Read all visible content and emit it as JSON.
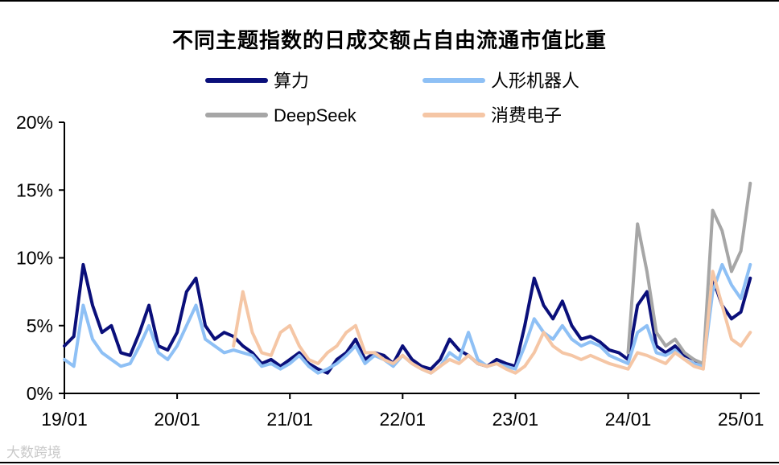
{
  "chart_data": {
    "type": "line",
    "title": "不同主题指数的日成交额占自由流通市值比重",
    "xlabel": "",
    "ylabel": "",
    "x_ticks": [
      "19/01",
      "20/01",
      "21/01",
      "22/01",
      "23/01",
      "24/01",
      "25/01"
    ],
    "y_ticks": [
      "0%",
      "5%",
      "10%",
      "15%",
      "20%"
    ],
    "xlim": [
      "2019-01",
      "2025-03"
    ],
    "ylim": [
      0,
      20
    ],
    "legend_position": "top",
    "series": [
      {
        "name": "算力",
        "color": "#0a0f7a",
        "x": [
          "2019-01",
          "2019-02",
          "2019-03",
          "2019-04",
          "2019-05",
          "2019-06",
          "2019-07",
          "2019-08",
          "2019-09",
          "2019-10",
          "2019-11",
          "2019-12",
          "2020-01",
          "2020-02",
          "2020-03",
          "2020-04",
          "2020-05",
          "2020-06",
          "2020-07",
          "2020-08",
          "2020-09",
          "2020-10",
          "2020-11",
          "2020-12",
          "2021-01",
          "2021-02",
          "2021-03",
          "2021-04",
          "2021-05",
          "2021-06",
          "2021-07",
          "2021-08",
          "2021-09",
          "2021-10",
          "2021-11",
          "2021-12",
          "2022-01",
          "2022-02",
          "2022-03",
          "2022-04",
          "2022-05",
          "2022-06",
          "2022-07",
          "2022-08",
          "2022-09",
          "2022-10",
          "2022-11",
          "2022-12",
          "2023-01",
          "2023-02",
          "2023-03",
          "2023-04",
          "2023-05",
          "2023-06",
          "2023-07",
          "2023-08",
          "2023-09",
          "2023-10",
          "2023-11",
          "2023-12",
          "2024-01",
          "2024-02",
          "2024-03",
          "2024-04",
          "2024-05",
          "2024-06",
          "2024-07",
          "2024-08",
          "2024-09",
          "2024-10",
          "2024-11",
          "2024-12",
          "2025-01",
          "2025-02"
        ],
        "values": [
          3.5,
          4.2,
          9.5,
          6.5,
          4.5,
          5.0,
          3.0,
          2.8,
          4.5,
          6.5,
          3.5,
          3.2,
          4.5,
          7.5,
          8.5,
          5.0,
          4.0,
          4.5,
          4.2,
          3.5,
          3.0,
          2.2,
          2.5,
          2.0,
          2.5,
          3.0,
          2.2,
          1.8,
          1.5,
          2.5,
          3.0,
          4.0,
          2.5,
          3.0,
          2.8,
          2.2,
          3.5,
          2.5,
          2.0,
          1.8,
          2.5,
          4.0,
          3.2,
          2.8,
          2.2,
          2.0,
          2.5,
          2.2,
          2.0,
          5.0,
          8.5,
          6.5,
          5.5,
          6.8,
          5.0,
          4.0,
          4.2,
          3.8,
          3.2,
          3.0,
          2.5,
          6.5,
          7.5,
          3.5,
          3.0,
          3.5,
          2.8,
          2.5,
          2.0,
          8.5,
          6.5,
          5.5,
          6.0,
          8.5
        ]
      },
      {
        "name": "人形机器人",
        "color": "#8ec0f5",
        "x": [
          "2019-01",
          "2019-02",
          "2019-03",
          "2019-04",
          "2019-05",
          "2019-06",
          "2019-07",
          "2019-08",
          "2019-09",
          "2019-10",
          "2019-11",
          "2019-12",
          "2020-01",
          "2020-02",
          "2020-03",
          "2020-04",
          "2020-05",
          "2020-06",
          "2020-07",
          "2020-08",
          "2020-09",
          "2020-10",
          "2020-11",
          "2020-12",
          "2021-01",
          "2021-02",
          "2021-03",
          "2021-04",
          "2021-05",
          "2021-06",
          "2021-07",
          "2021-08",
          "2021-09",
          "2021-10",
          "2021-11",
          "2021-12",
          "2022-01",
          "2022-02",
          "2022-03",
          "2022-04",
          "2022-05",
          "2022-06",
          "2022-07",
          "2022-08",
          "2022-09",
          "2022-10",
          "2022-11",
          "2022-12",
          "2023-01",
          "2023-02",
          "2023-03",
          "2023-04",
          "2023-05",
          "2023-06",
          "2023-07",
          "2023-08",
          "2023-09",
          "2023-10",
          "2023-11",
          "2023-12",
          "2024-01",
          "2024-02",
          "2024-03",
          "2024-04",
          "2024-05",
          "2024-06",
          "2024-07",
          "2024-08",
          "2024-09",
          "2024-10",
          "2024-11",
          "2024-12",
          "2025-01",
          "2025-02"
        ],
        "values": [
          2.5,
          2.0,
          6.5,
          4.0,
          3.0,
          2.5,
          2.0,
          2.2,
          3.5,
          5.0,
          3.0,
          2.5,
          3.5,
          5.0,
          6.5,
          4.0,
          3.5,
          3.0,
          3.2,
          3.0,
          2.8,
          2.0,
          2.2,
          1.8,
          2.2,
          2.8,
          2.0,
          1.5,
          1.8,
          2.2,
          2.8,
          3.5,
          2.2,
          2.8,
          2.5,
          2.0,
          2.8,
          2.2,
          1.8,
          1.5,
          2.0,
          3.0,
          2.5,
          4.5,
          2.5,
          2.0,
          2.2,
          2.0,
          1.8,
          3.5,
          5.5,
          4.5,
          4.0,
          5.0,
          4.0,
          3.5,
          3.8,
          3.5,
          2.8,
          2.5,
          2.2,
          4.5,
          5.0,
          3.0,
          2.8,
          3.2,
          2.5,
          2.2,
          2.0,
          7.5,
          9.5,
          8.0,
          7.0,
          9.5
        ]
      },
      {
        "name": "DeepSeek",
        "color": "#a6a6a6",
        "x": [
          "2024-01",
          "2024-02",
          "2024-03",
          "2024-04",
          "2024-05",
          "2024-06",
          "2024-07",
          "2024-08",
          "2024-09",
          "2024-10",
          "2024-11",
          "2024-12",
          "2025-01",
          "2025-02"
        ],
        "values": [
          3.0,
          12.5,
          9.0,
          4.5,
          3.5,
          4.0,
          3.0,
          2.5,
          2.2,
          13.5,
          12.0,
          9.0,
          10.5,
          15.5
        ]
      },
      {
        "name": "消费电子",
        "color": "#f5c6a5",
        "x": [
          "2020-07",
          "2020-08",
          "2020-09",
          "2020-10",
          "2020-11",
          "2020-12",
          "2021-01",
          "2021-02",
          "2021-03",
          "2021-04",
          "2021-05",
          "2021-06",
          "2021-07",
          "2021-08",
          "2021-09",
          "2021-10",
          "2021-11",
          "2021-12",
          "2022-01",
          "2022-02",
          "2022-03",
          "2022-04",
          "2022-05",
          "2022-06",
          "2022-07",
          "2022-08",
          "2022-09",
          "2022-10",
          "2022-11",
          "2022-12",
          "2023-01",
          "2023-02",
          "2023-03",
          "2023-04",
          "2023-05",
          "2023-06",
          "2023-07",
          "2023-08",
          "2023-09",
          "2023-10",
          "2023-11",
          "2023-12",
          "2024-01",
          "2024-02",
          "2024-03",
          "2024-04",
          "2024-05",
          "2024-06",
          "2024-07",
          "2024-08",
          "2024-09",
          "2024-10",
          "2024-11",
          "2024-12",
          "2025-01",
          "2025-02"
        ],
        "values": [
          3.5,
          7.5,
          4.5,
          3.0,
          2.8,
          4.5,
          5.0,
          3.5,
          2.5,
          2.2,
          3.0,
          3.5,
          4.5,
          5.0,
          3.0,
          3.0,
          2.5,
          2.2,
          2.8,
          2.2,
          1.8,
          1.5,
          2.0,
          2.5,
          2.2,
          2.8,
          2.2,
          2.0,
          2.2,
          1.8,
          1.5,
          2.0,
          3.0,
          4.5,
          3.5,
          3.0,
          2.8,
          2.5,
          2.8,
          2.5,
          2.2,
          2.0,
          1.8,
          3.0,
          2.8,
          2.5,
          2.2,
          3.0,
          2.5,
          2.0,
          1.8,
          9.0,
          6.5,
          4.0,
          3.5,
          4.5
        ]
      }
    ]
  },
  "watermark": "大数跨境"
}
